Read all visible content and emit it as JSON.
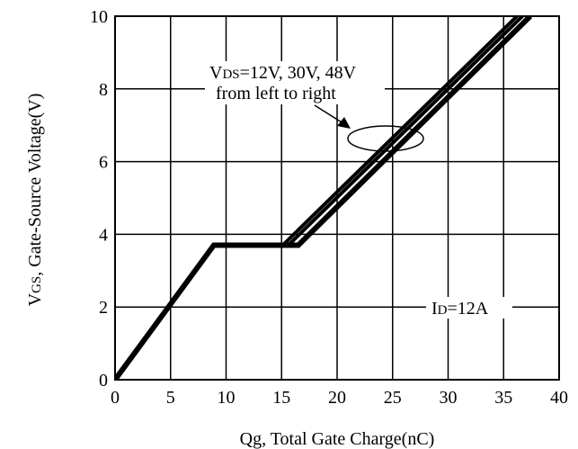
{
  "chart_data": {
    "type": "line",
    "xlabel": "Qg, Total Gate Charge(nC)",
    "ylabel": "VGS, Gate-Source Voltage(V)",
    "ylabel_parts": {
      "main": "V",
      "sub": "GS",
      "rest": ", Gate-Source Voltage(V)"
    },
    "xlim": [
      0,
      40
    ],
    "ylim": [
      0,
      10
    ],
    "x_ticks": [
      0,
      5,
      10,
      15,
      20,
      25,
      30,
      35,
      40
    ],
    "y_ticks": [
      0,
      2,
      4,
      6,
      8,
      10
    ],
    "grid": true,
    "series": [
      {
        "name": "VDS=12V",
        "x": [
          0,
          8.9,
          15.1,
          36.2
        ],
        "y": [
          0,
          3.7,
          3.7,
          10
        ]
      },
      {
        "name": "VDS=30V",
        "x": [
          0,
          8.9,
          15.6,
          36.7
        ],
        "y": [
          0,
          3.7,
          3.7,
          10
        ]
      },
      {
        "name": "VDS=48V",
        "x": [
          0,
          8.9,
          16.5,
          37.4
        ],
        "y": [
          0,
          3.7,
          3.7,
          10
        ]
      }
    ],
    "annotations": {
      "vds": {
        "main": "V",
        "sub": "DS",
        "rest": "=12V, 30V, 48V",
        "line2": "from left to right"
      },
      "id": {
        "main": "I",
        "sub": "D",
        "rest": "=12A"
      }
    }
  }
}
